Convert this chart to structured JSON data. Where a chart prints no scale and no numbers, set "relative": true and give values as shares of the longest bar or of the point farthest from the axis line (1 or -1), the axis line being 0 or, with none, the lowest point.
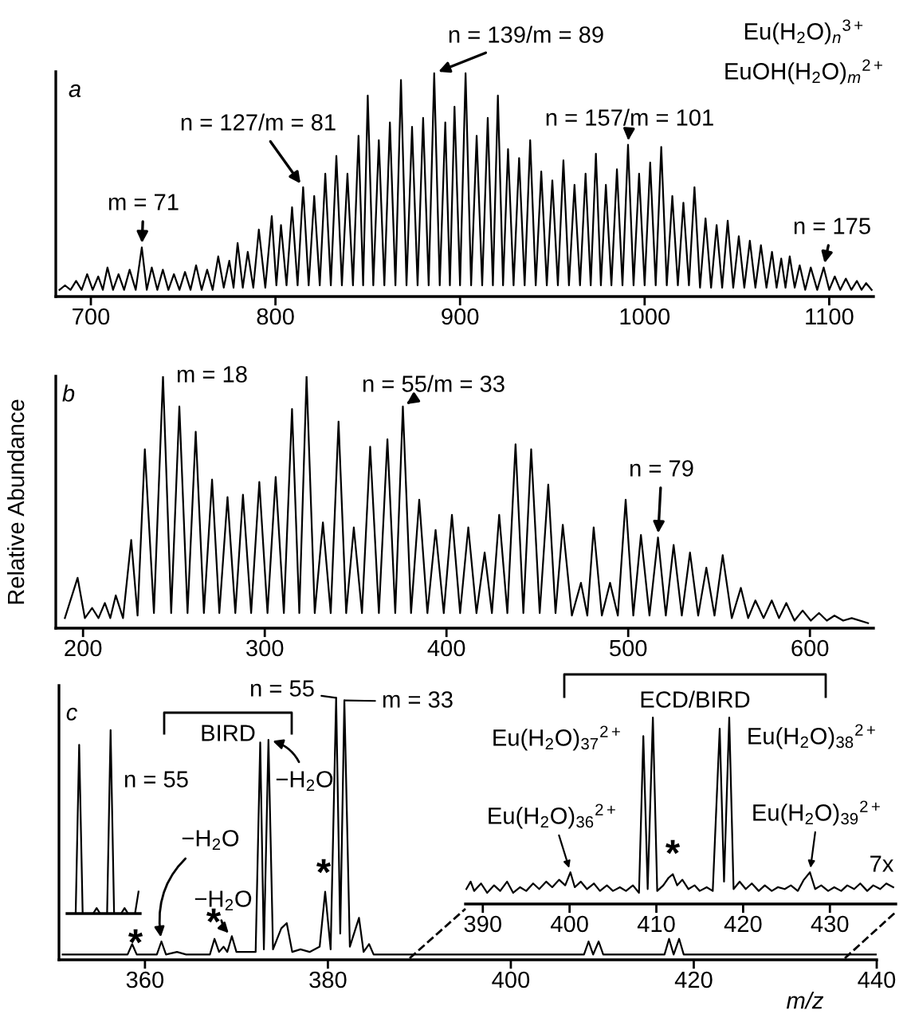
{
  "chart_data": [
    {
      "type": "line",
      "relative": true,
      "xlim": [
        681,
        1124
      ],
      "xticks": [
        700,
        800,
        900,
        1000,
        1100
      ],
      "series": [
        {
          "color": "#000000",
          "x": [
            683,
            686,
            689,
            692,
            695,
            698,
            701,
            704,
            706.5,
            709,
            712,
            715,
            718,
            721,
            724.3,
            727.6,
            730.3,
            733,
            736,
            739,
            742,
            745,
            748,
            751,
            754,
            757,
            760,
            763,
            766,
            769,
            772,
            775,
            777.3,
            779.5,
            782.3,
            785,
            788,
            791,
            794.5,
            798,
            800.5,
            803,
            806,
            809,
            812,
            815,
            818,
            821,
            824,
            827,
            830,
            833,
            836,
            839,
            842,
            845,
            847.5,
            850,
            853,
            856,
            859,
            862,
            865,
            868,
            871,
            874,
            877,
            880,
            883,
            886,
            889,
            892,
            894.5,
            897,
            900,
            903,
            906,
            909,
            912,
            915,
            917.8,
            920.5,
            923.3,
            926,
            929,
            932,
            935,
            938,
            941,
            944,
            947,
            950,
            953,
            956,
            959,
            962,
            965,
            968,
            970.8,
            973.6,
            976.3,
            979,
            982,
            985,
            988,
            991,
            994,
            997,
            1000,
            1003,
            1006,
            1009,
            1012,
            1015,
            1018,
            1021,
            1024,
            1027,
            1030,
            1033,
            1036,
            1039,
            1042,
            1045,
            1048,
            1051,
            1054,
            1057,
            1060,
            1063,
            1066,
            1069,
            1071.5,
            1074,
            1076.3,
            1078.6,
            1081.3,
            1084,
            1087,
            1090,
            1093.5,
            1097,
            1100,
            1103,
            1106,
            1109,
            1112,
            1115,
            1117.5,
            1120,
            1123
          ],
          "values": [
            0.03,
            0.05,
            0.03,
            0.07,
            0.03,
            0.1,
            0.03,
            0.09,
            0.03,
            0.13,
            0.03,
            0.1,
            0.03,
            0.12,
            0.03,
            0.22,
            0.03,
            0.13,
            0.03,
            0.12,
            0.03,
            0.1,
            0.03,
            0.11,
            0.03,
            0.14,
            0.03,
            0.12,
            0.03,
            0.18,
            0.04,
            0.16,
            0.04,
            0.24,
            0.04,
            0.2,
            0.04,
            0.3,
            0.04,
            0.36,
            0.05,
            0.32,
            0.05,
            0.4,
            0.05,
            0.49,
            0.05,
            0.45,
            0.05,
            0.55,
            0.05,
            0.63,
            0.05,
            0.55,
            0.05,
            0.72,
            0.05,
            0.9,
            0.05,
            0.7,
            0.05,
            0.78,
            0.05,
            0.97,
            0.05,
            0.76,
            0.05,
            0.8,
            0.05,
            1.0,
            0.05,
            0.78,
            0.05,
            0.85,
            0.05,
            1.0,
            0.05,
            0.72,
            0.05,
            0.8,
            0.05,
            0.9,
            0.05,
            0.66,
            0.05,
            0.62,
            0.05,
            0.7,
            0.05,
            0.56,
            0.05,
            0.52,
            0.05,
            0.61,
            0.05,
            0.5,
            0.05,
            0.55,
            0.05,
            0.64,
            0.05,
            0.5,
            0.05,
            0.57,
            0.05,
            0.68,
            0.05,
            0.55,
            0.05,
            0.6,
            0.05,
            0.67,
            0.05,
            0.45,
            0.05,
            0.42,
            0.05,
            0.49,
            0.04,
            0.35,
            0.04,
            0.32,
            0.04,
            0.34,
            0.04,
            0.27,
            0.04,
            0.25,
            0.04,
            0.23,
            0.04,
            0.2,
            0.04,
            0.17,
            0.04,
            0.18,
            0.04,
            0.14,
            0.03,
            0.13,
            0.03,
            0.13,
            0.03,
            0.09,
            0.03,
            0.08,
            0.03,
            0.07,
            0.03,
            0.06,
            0.03
          ]
        }
      ],
      "annotations": [
        "a",
        "Eu(H$_{2}$O)$_{n}$$^{3+}$",
        "EuOH(H$_{2}$O)$_{m}$$^{2+}$",
        {
          "text": "m = 71",
          "x": 727.6,
          "y": 0.22
        },
        {
          "text": "n = 127/m = 81",
          "x": 815,
          "y": 0.49
        },
        {
          "text": "n = 139/m = 89",
          "x": 886,
          "y": 1.0
        },
        {
          "text": "n = 157/m = 101",
          "x": 991,
          "y": 0.68
        },
        {
          "text": "n = 175",
          "x": 1097,
          "y": 0.13
        }
      ]
    },
    {
      "type": "line",
      "relative": true,
      "xlim": [
        185,
        635
      ],
      "xticks": [
        200,
        300,
        400,
        500,
        600
      ],
      "ylabel": "Relative Abundance",
      "series": [
        {
          "color": "#000000",
          "x": [
            190,
            197,
            201,
            205,
            208.5,
            212,
            215,
            218,
            222,
            226.5,
            230,
            234,
            239,
            244,
            248.5,
            253,
            257.5,
            262,
            266.5,
            271,
            275,
            279.5,
            283.8,
            288,
            292.5,
            297,
            301.5,
            306,
            310.5,
            315,
            319,
            323,
            327.5,
            332,
            336.3,
            340.6,
            344.8,
            349,
            353.5,
            358,
            362.8,
            367.5,
            371.8,
            376,
            380.5,
            385,
            389.5,
            394,
            398.5,
            403,
            407.5,
            412,
            416.5,
            421,
            425,
            429,
            433.5,
            438,
            442.3,
            446.6,
            451.3,
            456,
            460,
            464,
            469,
            474,
            477.5,
            481,
            485.5,
            490,
            494.3,
            498.6,
            502.8,
            507,
            511.7,
            516.4,
            520.7,
            525,
            529.5,
            534,
            538.5,
            543,
            547.5,
            552,
            557,
            562,
            566,
            570,
            574.5,
            579,
            583,
            587,
            591.5,
            596,
            600.5,
            605,
            609.3,
            613.5,
            618.3,
            623,
            632
          ],
          "values": [
            0.04,
            0.2,
            0.04,
            0.08,
            0.04,
            0.1,
            0.04,
            0.13,
            0.04,
            0.35,
            0.05,
            0.71,
            0.06,
            1.0,
            0.06,
            0.88,
            0.06,
            0.78,
            0.06,
            0.59,
            0.06,
            0.52,
            0.06,
            0.53,
            0.06,
            0.58,
            0.06,
            0.6,
            0.06,
            0.87,
            0.06,
            1.0,
            0.06,
            0.42,
            0.06,
            0.82,
            0.06,
            0.4,
            0.06,
            0.72,
            0.06,
            0.75,
            0.06,
            0.88,
            0.06,
            0.51,
            0.06,
            0.39,
            0.06,
            0.45,
            0.06,
            0.4,
            0.06,
            0.3,
            0.06,
            0.45,
            0.06,
            0.73,
            0.06,
            0.71,
            0.06,
            0.57,
            0.06,
            0.41,
            0.05,
            0.18,
            0.05,
            0.4,
            0.05,
            0.18,
            0.05,
            0.51,
            0.05,
            0.37,
            0.05,
            0.36,
            0.05,
            0.33,
            0.05,
            0.3,
            0.05,
            0.24,
            0.05,
            0.29,
            0.04,
            0.16,
            0.04,
            0.11,
            0.04,
            0.11,
            0.04,
            0.1,
            0.03,
            0.07,
            0.03,
            0.06,
            0.03,
            0.05,
            0.03,
            0.04,
            0.02
          ]
        }
      ],
      "annotations": [
        "b",
        {
          "text": "m = 18",
          "x": 244,
          "y": 1.0
        },
        {
          "text": "n = 55/m = 33",
          "x": 376,
          "y": 0.88
        },
        {
          "text": "n = 79",
          "x": 516.4,
          "y": 0.36
        }
      ]
    },
    {
      "type": "line",
      "relative": true,
      "xlim": [
        350.6,
        440
      ],
      "xticks": [
        360,
        380,
        400,
        420,
        440
      ],
      "xlabel": "m/z",
      "series": [
        {
          "color": "#000000",
          "x": [
            351,
            358.1,
            358.6,
            359.1,
            361.3,
            361.8,
            362.3,
            363.5,
            364.5,
            367.1,
            367.6,
            368.1,
            368.6,
            369.0,
            369.5,
            370.0,
            372.1,
            372.6,
            373.0,
            373.5,
            374.0,
            374.9,
            375.5,
            376.1,
            377.0,
            378.0,
            379.1,
            379.7,
            380.3,
            380.9,
            381.35,
            381.8,
            382.4,
            383.4,
            383.9,
            384.5,
            385.0,
            400,
            408.0,
            408.5,
            409.0,
            409.6,
            410.1,
            416.8,
            417.3,
            417.8,
            418.4,
            418.9,
            440
          ],
          "values": [
            0.02,
            0.02,
            0.06,
            0.02,
            0.02,
            0.07,
            0.02,
            0.03,
            0.02,
            0.02,
            0.08,
            0.03,
            0.05,
            0.03,
            0.09,
            0.03,
            0.03,
            0.83,
            0.04,
            0.84,
            0.04,
            0.12,
            0.14,
            0.03,
            0.04,
            0.03,
            0.05,
            0.26,
            0.04,
            1.0,
            0.1,
            0.99,
            0.05,
            0.16,
            0.03,
            0.06,
            0.02,
            0.02,
            0.02,
            0.07,
            0.02,
            0.07,
            0.02,
            0.02,
            0.08,
            0.02,
            0.08,
            0.02,
            0.02
          ]
        }
      ],
      "annotations": [
        "c",
        "BIRD",
        "ECD/BIRD",
        {
          "text": "n = 55",
          "x": 380.9,
          "y": 1.0
        },
        {
          "text": "m = 33",
          "x": 381.8,
          "y": 0.99
        },
        {
          "text": "−H$_{2}$O",
          "x": 373.5,
          "y": 0.84
        },
        {
          "text": "−H$_{2}$O",
          "x": 361.8,
          "y": 0.07
        },
        {
          "text": "−H$_{2}$O",
          "x": 369.5,
          "y": 0.09
        },
        {
          "text": "*",
          "x": 358.6,
          "y": 0.06
        },
        {
          "text": "*",
          "x": 367.6,
          "y": 0.08
        },
        {
          "text": "*",
          "x": 379.7,
          "y": 0.26
        }
      ]
    },
    {
      "type": "line",
      "relative": true,
      "xlim": [
        388,
        437.6
      ],
      "xticks": [
        390,
        400,
        410,
        420,
        430
      ],
      "series": [
        {
          "color": "#000000",
          "x": [
            388.1,
            388.6,
            389,
            389.8,
            390.5,
            391.3,
            392,
            392.8,
            393.5,
            394.3,
            395,
            395.8,
            396.5,
            397.3,
            398,
            398.8,
            399.5,
            400.1,
            400.6,
            401.3,
            402,
            402.8,
            403.5,
            404.3,
            405,
            405.8,
            406.5,
            407.3,
            408,
            408.5,
            409,
            409.6,
            410.1,
            410.8,
            411.4,
            411.9,
            412.4,
            413,
            413.7,
            414.4,
            415,
            415.8,
            416.5,
            417.3,
            417.8,
            418.4,
            418.9,
            419.6,
            420.3,
            421,
            421.8,
            422.5,
            423.3,
            424,
            424.8,
            425.5,
            426.3,
            427,
            427.7,
            428.3,
            429,
            429.8,
            430.5,
            431.3,
            432,
            432.8,
            433.5,
            434.3,
            435,
            435.8,
            436.5,
            437.3
          ],
          "values": [
            0.08,
            0.12,
            0.07,
            0.11,
            0.06,
            0.1,
            0.07,
            0.12,
            0.06,
            0.09,
            0.07,
            0.11,
            0.08,
            0.12,
            0.09,
            0.13,
            0.1,
            0.17,
            0.09,
            0.12,
            0.08,
            0.11,
            0.07,
            0.1,
            0.07,
            0.09,
            0.07,
            0.1,
            0.06,
            0.9,
            0.08,
            1.0,
            0.07,
            0.1,
            0.14,
            0.16,
            0.1,
            0.13,
            0.08,
            0.1,
            0.07,
            0.09,
            0.07,
            0.94,
            0.12,
            1.0,
            0.08,
            0.12,
            0.08,
            0.11,
            0.07,
            0.1,
            0.07,
            0.09,
            0.08,
            0.1,
            0.07,
            0.13,
            0.17,
            0.08,
            0.1,
            0.07,
            0.09,
            0.07,
            0.1,
            0.08,
            0.11,
            0.07,
            0.1,
            0.08,
            0.11,
            0.09
          ]
        }
      ],
      "annotations": [
        {
          "text": "Eu(H$_{2}$O)$_{37}$$^{2+}$",
          "x": 408.5,
          "y": 0.9
        },
        {
          "text": "Eu(H$_{2}$O)$_{38}$$^{2+}$",
          "x": 418.4,
          "y": 1.0
        },
        {
          "text": "Eu(H$_{2}$O)$_{36}$$^{2+}$",
          "x": 400.1,
          "y": 0.17
        },
        {
          "text": "Eu(H$_{2}$O)$_{39}$$^{2+}$",
          "x": 427.7,
          "y": 0.17
        },
        {
          "text": "*",
          "x": 411.9,
          "y": 0.16
        },
        "7x"
      ]
    },
    {
      "type": "line",
      "relative": true,
      "categories": [
        null,
        null,
        null,
        null,
        null,
        null,
        null,
        null,
        null,
        null,
        null,
        null,
        null,
        null,
        null,
        null,
        null,
        null,
        null,
        null,
        null
      ],
      "series": [
        {
          "color": "#000000",
          "values": [
            0,
            0,
            0,
            0.92,
            0,
            0,
            0,
            0,
            0.03,
            0,
            0,
            0,
            1.0,
            0,
            0,
            0,
            0.03,
            0,
            0,
            0,
            0.12
          ]
        }
      ],
      "annotations": [
        "n = 55"
      ]
    }
  ]
}
